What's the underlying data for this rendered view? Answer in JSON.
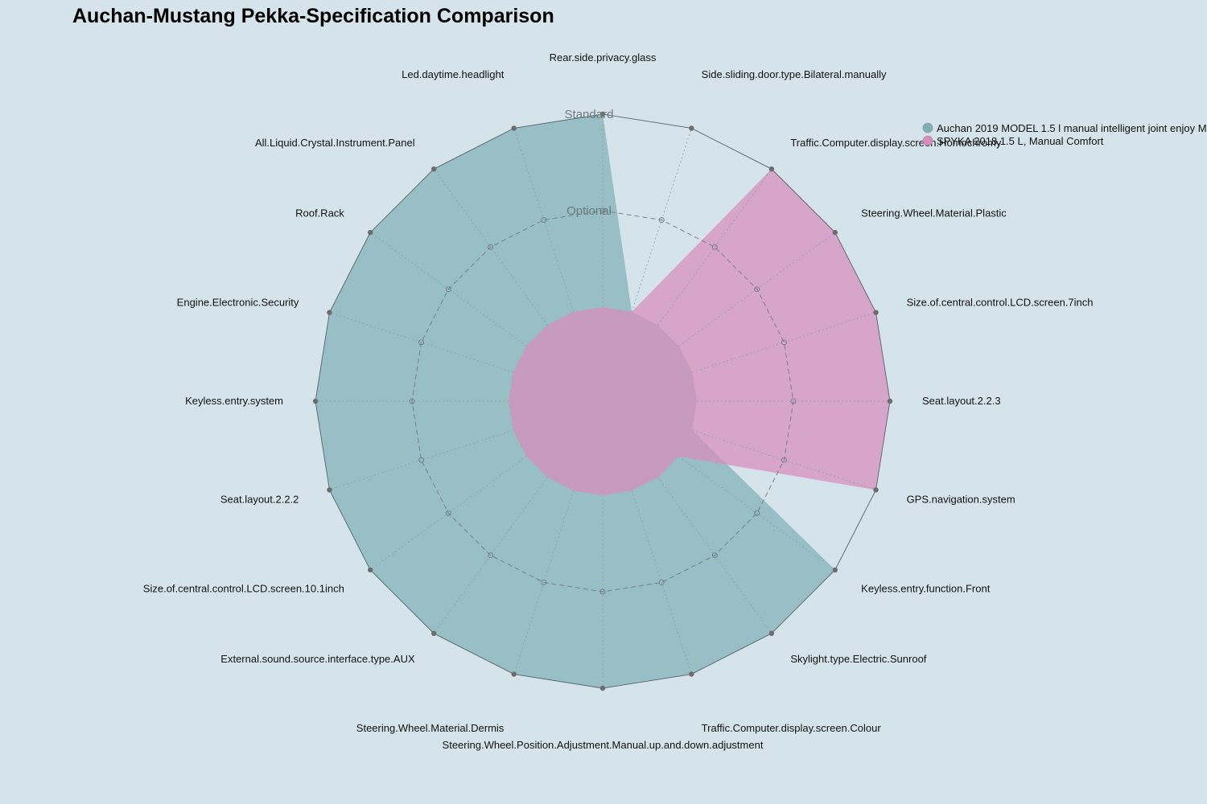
{
  "chart_data": {
    "type": "radar",
    "title": "Auchan-Mustang Pekka-Specification Comparison",
    "levels": [
      "",
      "Optional",
      "Standard"
    ],
    "axes": [
      "Rear.side.privacy.glass",
      "Side.sliding.door.type.Bilateral.manually",
      "Traffic.Computer.display.screen.Homochromy",
      "Steering.Wheel.Material.Plastic",
      "Size.of.central.control.LCD.screen.7inch",
      "Seat.layout.2.2.3",
      "GPS.navigation.system",
      "Keyless.entry.function.Front",
      "Skylight.type.Electric.Sunroof",
      "Traffic.Computer.display.screen.Colour",
      "Steering.Wheel.Position.Adjustment.Manual.up.and.down.adjustment",
      "Steering.Wheel.Material.Dermis",
      "External.sound.source.interface.type.AUX",
      "Size.of.central.control.LCD.screen.10.1inch",
      "Seat.layout.2.2.2",
      "Keyless.entry.system",
      "Engine.Electronic.Security",
      "Roof.Rack",
      "All.Liquid.Crystal.Instrument.Panel",
      "Led.daytime.headlight"
    ],
    "series": [
      {
        "name": "Auchan 2019 MODEL 1.5 l manual intelligent joint enjoy M",
        "color": "#7fb0b5",
        "values": [
          2,
          0,
          0,
          0,
          0,
          0,
          0,
          2,
          2,
          2,
          2,
          2,
          2,
          2,
          2,
          2,
          2,
          2,
          2,
          2
        ]
      },
      {
        "name": "SPYKA 2018,1.5 L, Manual Comfort",
        "color": "#d98cbc",
        "values": [
          0,
          0,
          2,
          2,
          2,
          2,
          2,
          0,
          0,
          0,
          0,
          0,
          0,
          0,
          0,
          0,
          0,
          0,
          0,
          0
        ]
      }
    ],
    "range": [
      0,
      2
    ],
    "legend_position": "top-right"
  }
}
